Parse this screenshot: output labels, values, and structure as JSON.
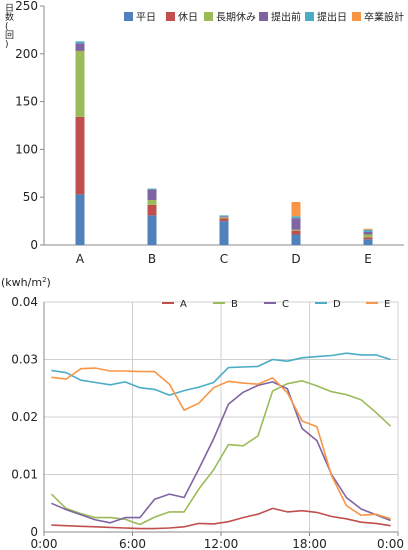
{
  "chart_data": [
    {
      "type": "bar",
      "stacked": true,
      "ylabel": "日数(回)",
      "ylabel_chars": [
        "日",
        "数",
        "(",
        "回",
        ")"
      ],
      "ylim": [
        0,
        250
      ],
      "yticks": [
        "0",
        "50",
        "100",
        "150",
        "200",
        "250"
      ],
      "categories": [
        "A",
        "B",
        "C",
        "D",
        "E"
      ],
      "legend_position": "top-right",
      "grid": false,
      "series": [
        {
          "name": "平日",
          "color": "#4f81bd",
          "values": [
            53,
            31,
            25,
            11,
            6
          ]
        },
        {
          "name": "休日",
          "color": "#c0504d",
          "values": [
            81,
            11,
            3,
            4,
            2
          ]
        },
        {
          "name": "長期休み",
          "color": "#9bbb59",
          "values": [
            69,
            5,
            1,
            1,
            3
          ]
        },
        {
          "name": "提出前",
          "color": "#8064a2",
          "values": [
            8,
            11,
            1,
            12,
            3
          ]
        },
        {
          "name": "提出日",
          "color": "#4bacc6",
          "values": [
            2,
            1,
            1,
            2,
            2
          ]
        },
        {
          "name": "卒業設計",
          "color": "#f79646",
          "values": [
            0,
            0,
            0,
            15,
            1
          ]
        }
      ]
    },
    {
      "type": "line",
      "ylabel_base": "(kwh/m",
      "ylabel_sup": "2",
      "ylabel_end": ")",
      "ylim": [
        0,
        0.04
      ],
      "yticks": [
        "0",
        "0.01",
        "0.02",
        "0.03",
        "0.04"
      ],
      "xlim": [
        0,
        24
      ],
      "xticks": [
        {
          "v": 0,
          "label": "0:00"
        },
        {
          "v": 6,
          "label": "6:00"
        },
        {
          "v": 12,
          "label": "12:00"
        },
        {
          "v": 18,
          "label": "18:00"
        },
        {
          "v": 24,
          "label": "0:00"
        }
      ],
      "grid": true,
      "legend_position": "top",
      "x": [
        0,
        1,
        2,
        3,
        4,
        5,
        6,
        7,
        8,
        9,
        10,
        11,
        12,
        13,
        14,
        15,
        16,
        17,
        18,
        19,
        20,
        21,
        22,
        23
      ],
      "series": [
        {
          "name": "A",
          "color": "#c0504d",
          "values": [
            0.0012,
            0.0011,
            0.001,
            0.0009,
            0.0008,
            0.0007,
            0.0006,
            0.0006,
            0.0007,
            0.0009,
            0.0015,
            0.0014,
            0.0018,
            0.0025,
            0.0031,
            0.0041,
            0.0035,
            0.0037,
            0.0034,
            0.0027,
            0.0023,
            0.0017,
            0.0015,
            0.0011
          ]
        },
        {
          "name": "B",
          "color": "#9bbb59",
          "values": [
            0.0066,
            0.0041,
            0.0032,
            0.0025,
            0.0025,
            0.0022,
            0.0013,
            0.0026,
            0.0035,
            0.0035,
            0.0075,
            0.0108,
            0.0152,
            0.015,
            0.0167,
            0.0245,
            0.0258,
            0.0263,
            0.0254,
            0.0244,
            0.0239,
            0.023,
            0.0208,
            0.0184
          ]
        },
        {
          "name": "C",
          "color": "#8064a2",
          "values": [
            0.005,
            0.0039,
            0.003,
            0.0021,
            0.0016,
            0.0025,
            0.0025,
            0.0057,
            0.0066,
            0.006,
            0.011,
            0.0162,
            0.0222,
            0.0243,
            0.0255,
            0.0261,
            0.0249,
            0.018,
            0.0159,
            0.01,
            0.006,
            0.004,
            0.003,
            0.002
          ]
        },
        {
          "name": "D",
          "color": "#4bacc6",
          "values": [
            0.0281,
            0.0277,
            0.0264,
            0.026,
            0.0256,
            0.0261,
            0.0251,
            0.0248,
            0.0238,
            0.0246,
            0.0252,
            0.026,
            0.0286,
            0.0287,
            0.0288,
            0.03,
            0.0297,
            0.0303,
            0.0305,
            0.0307,
            0.0311,
            0.0308,
            0.0308,
            0.03
          ]
        },
        {
          "name": "E",
          "color": "#f79646",
          "values": [
            0.0269,
            0.0266,
            0.0284,
            0.0285,
            0.028,
            0.028,
            0.0279,
            0.0279,
            0.0257,
            0.0212,
            0.0224,
            0.0251,
            0.0262,
            0.0259,
            0.0257,
            0.0268,
            0.0242,
            0.0193,
            0.0183,
            0.0098,
            0.0046,
            0.0029,
            0.0031,
            0.0023
          ]
        }
      ]
    }
  ]
}
